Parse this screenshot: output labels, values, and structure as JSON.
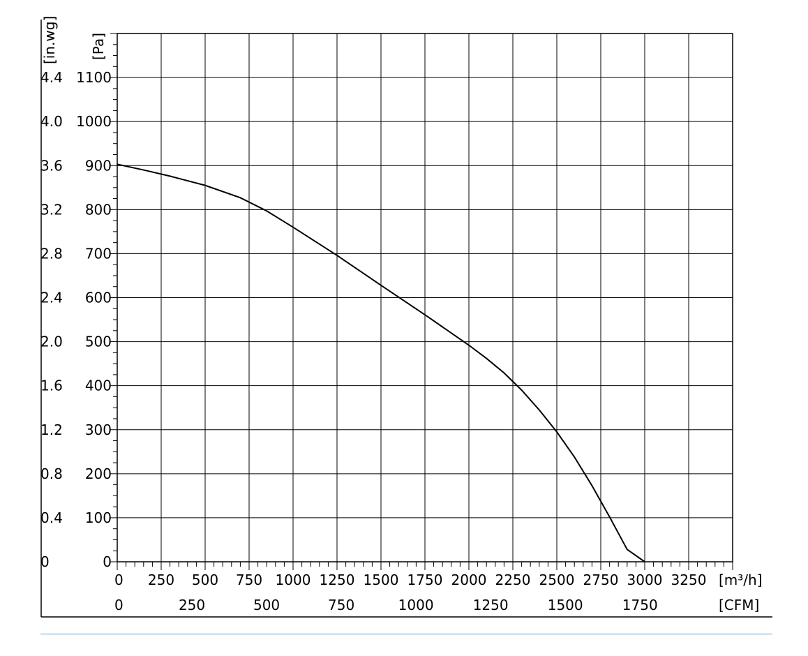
{
  "chart_data": {
    "type": "line",
    "x_unit_primary": "[m³/h]",
    "x_unit_secondary": "[CFM]",
    "y_unit_primary": "[Pa]",
    "y_unit_secondary": "[in.wg]",
    "xlim": [
      0,
      3500
    ],
    "ylim": [
      0,
      1200
    ],
    "grid": true,
    "x_ticks_primary": [
      0,
      250,
      500,
      750,
      1000,
      1250,
      1500,
      1750,
      2000,
      2250,
      2500,
      2750,
      3000,
      3250
    ],
    "x_ticks_secondary": [
      {
        "label": "0",
        "value": 0
      },
      {
        "label": "250",
        "value": 250
      },
      {
        "label": "500",
        "value": 500
      },
      {
        "label": "750",
        "value": 750
      },
      {
        "label": "1000",
        "value": 1000
      },
      {
        "label": "1250",
        "value": 1250
      },
      {
        "label": "1500",
        "value": 1500
      },
      {
        "label": "1750",
        "value": 1750
      }
    ],
    "y_ticks_primary": [
      0,
      100,
      200,
      300,
      400,
      500,
      600,
      700,
      800,
      900,
      1000,
      1100
    ],
    "y_ticks_secondary": [
      "0",
      "0.4",
      "0.8",
      "1.2",
      "1.6",
      "2.0",
      "2.4",
      "2.8",
      "3.2",
      "3.6",
      "4.0",
      "4.4"
    ],
    "series": [
      {
        "x": [
          0,
          150,
          300,
          500,
          700,
          850,
          1000,
          1250,
          1500,
          1750,
          2000,
          2100,
          2200,
          2300,
          2400,
          2500,
          2600,
          2700,
          2800,
          2900,
          3000
        ],
        "y": [
          903,
          890,
          876,
          855,
          827,
          797,
          760,
          696,
          628,
          561,
          492,
          462,
          429,
          390,
          345,
          295,
          238,
          173,
          102,
          28,
          0
        ]
      }
    ]
  }
}
